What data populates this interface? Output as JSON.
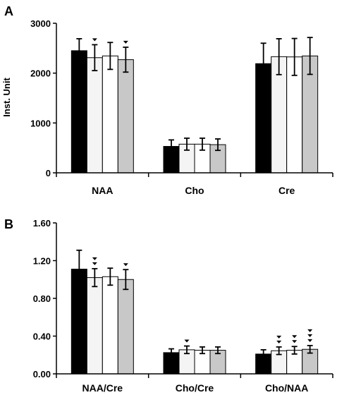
{
  "chart_data": [
    {
      "panel": "A",
      "type": "bar",
      "ylabel": "Inst. Unit",
      "ylim": [
        0,
        3000
      ],
      "yticks": [
        "0",
        "1000",
        "2000",
        "3000"
      ],
      "categories": [
        "NAA",
        "Cho",
        "Cre"
      ],
      "series": [
        {
          "color": "#000000",
          "values": [
            2450,
            530,
            2190
          ],
          "errors": [
            240,
            130,
            410
          ]
        },
        {
          "color": "#f4f4f4",
          "values": [
            2310,
            575,
            2330
          ],
          "errors": [
            260,
            120,
            360
          ]
        },
        {
          "color": "#ffffff",
          "values": [
            2345,
            575,
            2325
          ],
          "errors": [
            270,
            120,
            370
          ]
        },
        {
          "color": "#c8c8c8",
          "values": [
            2270,
            565,
            2345
          ],
          "errors": [
            250,
            115,
            370
          ]
        }
      ],
      "markers": [
        [
          0,
          0,
          0
        ],
        [
          1,
          0,
          0
        ],
        [
          0,
          0,
          0
        ],
        [
          1,
          0,
          0
        ]
      ],
      "marker_symbol": "▼"
    },
    {
      "panel": "B",
      "type": "bar",
      "ylim": [
        0,
        1.6
      ],
      "yticks": [
        "0.00",
        "0.40",
        "0.80",
        "1.20",
        "1.60"
      ],
      "categories": [
        "NAA/Cre",
        "Cho/Cre",
        "Cho/NAA"
      ],
      "series": [
        {
          "color": "#000000",
          "values": [
            1.11,
            0.225,
            0.21
          ],
          "errors": [
            0.2,
            0.04,
            0.045
          ]
        },
        {
          "color": "#f4f4f4",
          "values": [
            1.02,
            0.255,
            0.245
          ],
          "errors": [
            0.095,
            0.04,
            0.04
          ]
        },
        {
          "color": "#ffffff",
          "values": [
            1.03,
            0.25,
            0.25
          ],
          "errors": [
            0.09,
            0.035,
            0.04
          ]
        },
        {
          "color": "#c8c8c8",
          "values": [
            1.0,
            0.25,
            0.26
          ],
          "errors": [
            0.105,
            0.035,
            0.04
          ]
        }
      ],
      "markers": [
        [
          0,
          0,
          0
        ],
        [
          2,
          1,
          2
        ],
        [
          0,
          0,
          2
        ],
        [
          1,
          0,
          3
        ]
      ],
      "marker_symbol": "▼"
    }
  ]
}
